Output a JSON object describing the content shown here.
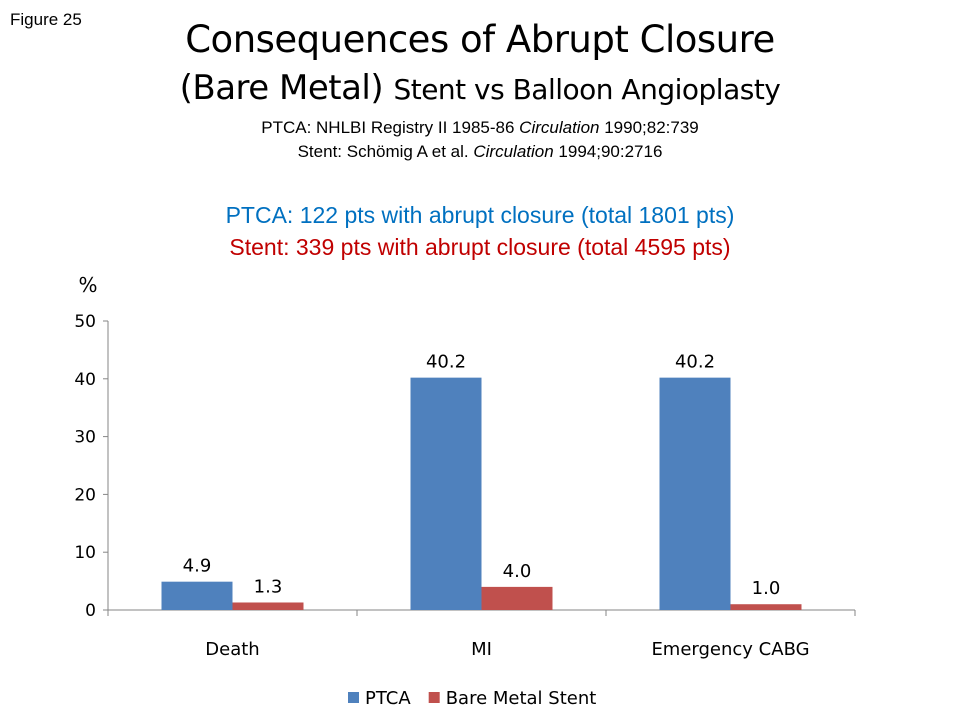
{
  "figure_label": "Figure 25",
  "title_line1": "Consequences of Abrupt Closure",
  "title_line2_big": "(Bare Metal)",
  "title_line2_small": "Stent vs Balloon Angioplasty",
  "ref1": {
    "pre": "PTCA: NHLBI Registry II 1985-86 ",
    "journal": "Circulation",
    "post": " 1990;82:739"
  },
  "ref2": {
    "pre": "Stent: Schömig A et al. ",
    "journal": "Circulation",
    "post": " 1994;90:2716"
  },
  "ptca_note": "PTCA: 122 pts with abrupt closure (total 1801 pts)",
  "stent_note": "Stent: 339 pts with abrupt closure (total 4595 pts)",
  "chart_data": {
    "type": "bar",
    "title": "",
    "ylabel": "%",
    "xlabel": "",
    "ylim": [
      0,
      50
    ],
    "yticks": [
      0,
      10,
      20,
      30,
      40,
      50
    ],
    "categories": [
      "Death",
      "MI",
      "Emergency CABG"
    ],
    "series": [
      {
        "name": "PTCA",
        "color": "#4F81BD",
        "values": [
          4.9,
          40.2,
          40.2
        ],
        "labels": [
          "4.9",
          "40.2",
          "40.2"
        ]
      },
      {
        "name": "Bare Metal Stent",
        "color": "#C0504D",
        "values": [
          1.3,
          4.0,
          1.0
        ],
        "labels": [
          "1.3",
          "4.0",
          "1.0"
        ]
      }
    ],
    "grid": false,
    "legend": "bottom"
  }
}
